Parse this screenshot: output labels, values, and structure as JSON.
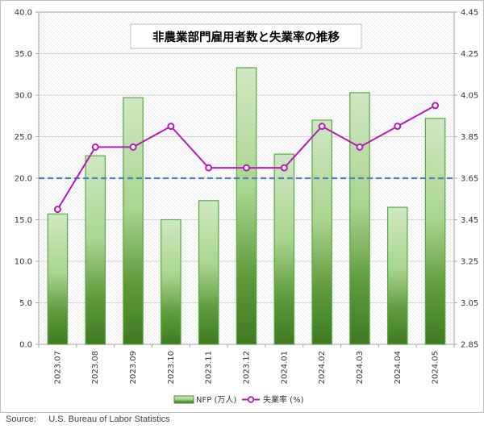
{
  "chart_data": {
    "type": "bar",
    "title": "非農業部門雇用者数と失業率の推移",
    "categories": [
      "2023.07",
      "2023.08",
      "2023.09",
      "2023.10",
      "2023.11",
      "2023.12",
      "2024.01",
      "2024.02",
      "2024.03",
      "2024.04",
      "2024.05"
    ],
    "series": [
      {
        "name": "NFP (万人)",
        "type": "bar",
        "axis": "left",
        "color": "#4e8a2e",
        "values": [
          15.7,
          22.7,
          29.7,
          15.0,
          17.3,
          33.3,
          22.9,
          27.0,
          30.3,
          16.5,
          27.2
        ]
      },
      {
        "name": "失業率 (%)",
        "type": "line",
        "axis": "right",
        "color": "#b41bb4",
        "values": [
          3.5,
          3.8,
          3.8,
          3.9,
          3.7,
          3.7,
          3.7,
          3.9,
          3.8,
          3.9,
          4.0
        ]
      }
    ],
    "reference_line": {
      "axis": "left",
      "value": 20.0,
      "color": "#4f81bd",
      "style": "dashed"
    },
    "y_left": {
      "min": 0,
      "max": 40,
      "ticks": [
        "0.0",
        "5.0",
        "10.0",
        "15.0",
        "20.0",
        "25.0",
        "30.0",
        "35.0",
        "40.0"
      ]
    },
    "y_right": {
      "min": 2.85,
      "max": 4.45,
      "ticks": [
        "2.85",
        "3.05",
        "3.25",
        "3.45",
        "3.65",
        "3.85",
        "4.05",
        "4.25",
        "4.45"
      ]
    },
    "grid": true,
    "legend_position": "bottom"
  },
  "source_label": "Source:",
  "source_text": "U.S. Bureau of Labor Statistics"
}
